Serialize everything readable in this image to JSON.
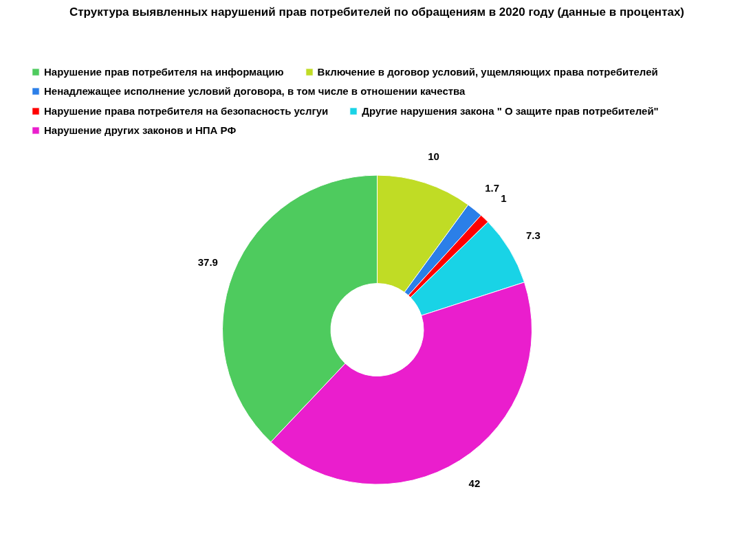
{
  "chart_data": {
    "type": "donut",
    "title": "Структура выявленных нарушений прав потребителей по обращениям в 2020 году (данные в процентах)",
    "categories": [
      "Нарушение прав потребителя на информацию",
      "Включение в договор условий, ущемляющих права потребителей",
      "Ненадлежащее исполнение условий договора, в том числе в отношении качества",
      "Нарушение права потребителя на безопасность услгуи",
      "Другие нарушения закона \" О защите прав потребителей\"",
      "Нарушение других законов и НПА РФ"
    ],
    "values": [
      37.9,
      10,
      1.7,
      1,
      7.3,
      42
    ],
    "colors": [
      "#4ecb5e",
      "#c0dc25",
      "#2b7fe8",
      "#ff0000",
      "#19d3e6",
      "#ea1ecd"
    ],
    "data_labels": true,
    "legend": "top"
  }
}
